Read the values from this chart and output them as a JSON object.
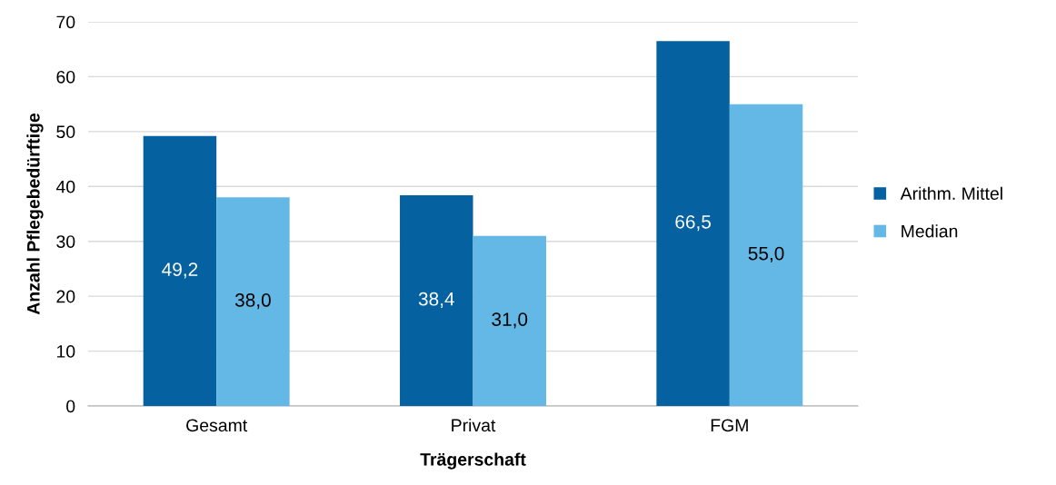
{
  "chart_data": {
    "type": "bar",
    "xlabel": "Trägerschaft",
    "ylabel": "Anzahl Pflegebedürftige",
    "categories": [
      "Gesamt",
      "Privat",
      "FGM"
    ],
    "series": [
      {
        "name": "Arithm. Mittel",
        "color": "#0561a0",
        "values": [
          49.2,
          38.4,
          66.5
        ],
        "value_labels": [
          "49,2",
          "38,4",
          "66,5"
        ]
      },
      {
        "name": "Median",
        "color": "#63b8e6",
        "values": [
          38.0,
          31.0,
          55.0
        ],
        "value_labels": [
          "38,0",
          "31,0",
          "55,0"
        ]
      }
    ],
    "ylim": [
      0,
      70
    ],
    "yticks": [
      0,
      10,
      20,
      30,
      40,
      50,
      60,
      70
    ],
    "grid": "y",
    "legend": "right"
  }
}
